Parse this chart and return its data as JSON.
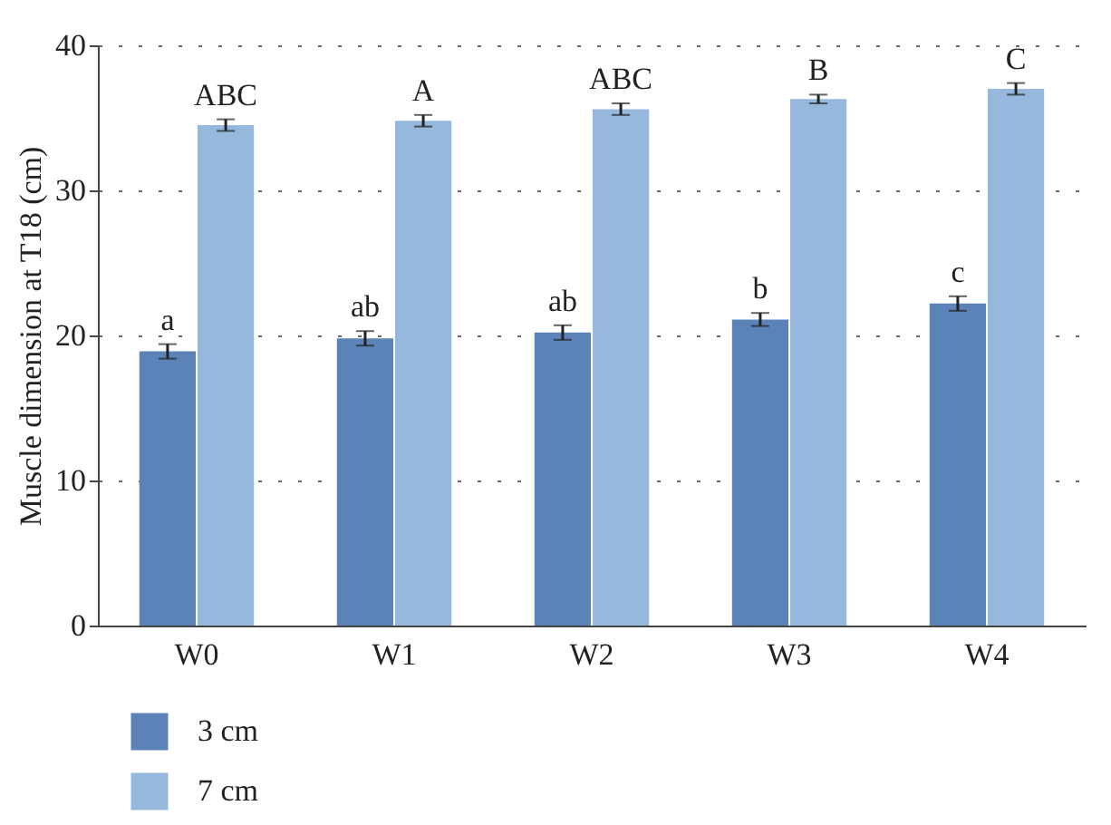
{
  "chart_data": {
    "type": "bar",
    "ylabel": "Muscle dimension at T18 (cm)",
    "categories": [
      "W0",
      "W1",
      "W2",
      "W3",
      "W4"
    ],
    "series": [
      {
        "name": "3 cm",
        "color": "#5b83b7",
        "values": [
          18.9,
          19.8,
          20.2,
          21.1,
          22.2
        ],
        "errors": [
          0.5,
          0.5,
          0.5,
          0.45,
          0.5
        ]
      },
      {
        "name": "7 cm",
        "color": "#95b8dc",
        "values": [
          34.5,
          34.8,
          35.6,
          36.3,
          37.0
        ],
        "errors": [
          0.4,
          0.4,
          0.4,
          0.3,
          0.4
        ]
      }
    ],
    "ylim": [
      0,
      40
    ],
    "yticks": [
      0,
      10,
      20,
      30,
      40
    ],
    "grid": "y",
    "legend": "bottom left",
    "annotations": [
      {
        "text": "a",
        "x": "W0",
        "y": 19.4
      },
      {
        "text": "ab",
        "x": "W1",
        "y": 20.3
      },
      {
        "text": "ab",
        "x": "W2",
        "y": 20.7
      },
      {
        "text": "b",
        "x": "W3",
        "y": 21.55
      },
      {
        "text": "c",
        "x": "W4",
        "y": 22.7
      },
      {
        "text": "ABC",
        "x": "W0",
        "y": 34.9
      },
      {
        "text": "A",
        "x": "W1",
        "y": 35.2
      },
      {
        "text": "ABC",
        "x": "W2",
        "y": 36.0
      },
      {
        "text": "B",
        "x": "W3",
        "y": 36.6
      },
      {
        "text": "C",
        "x": "W4",
        "y": 37.4
      }
    ]
  }
}
